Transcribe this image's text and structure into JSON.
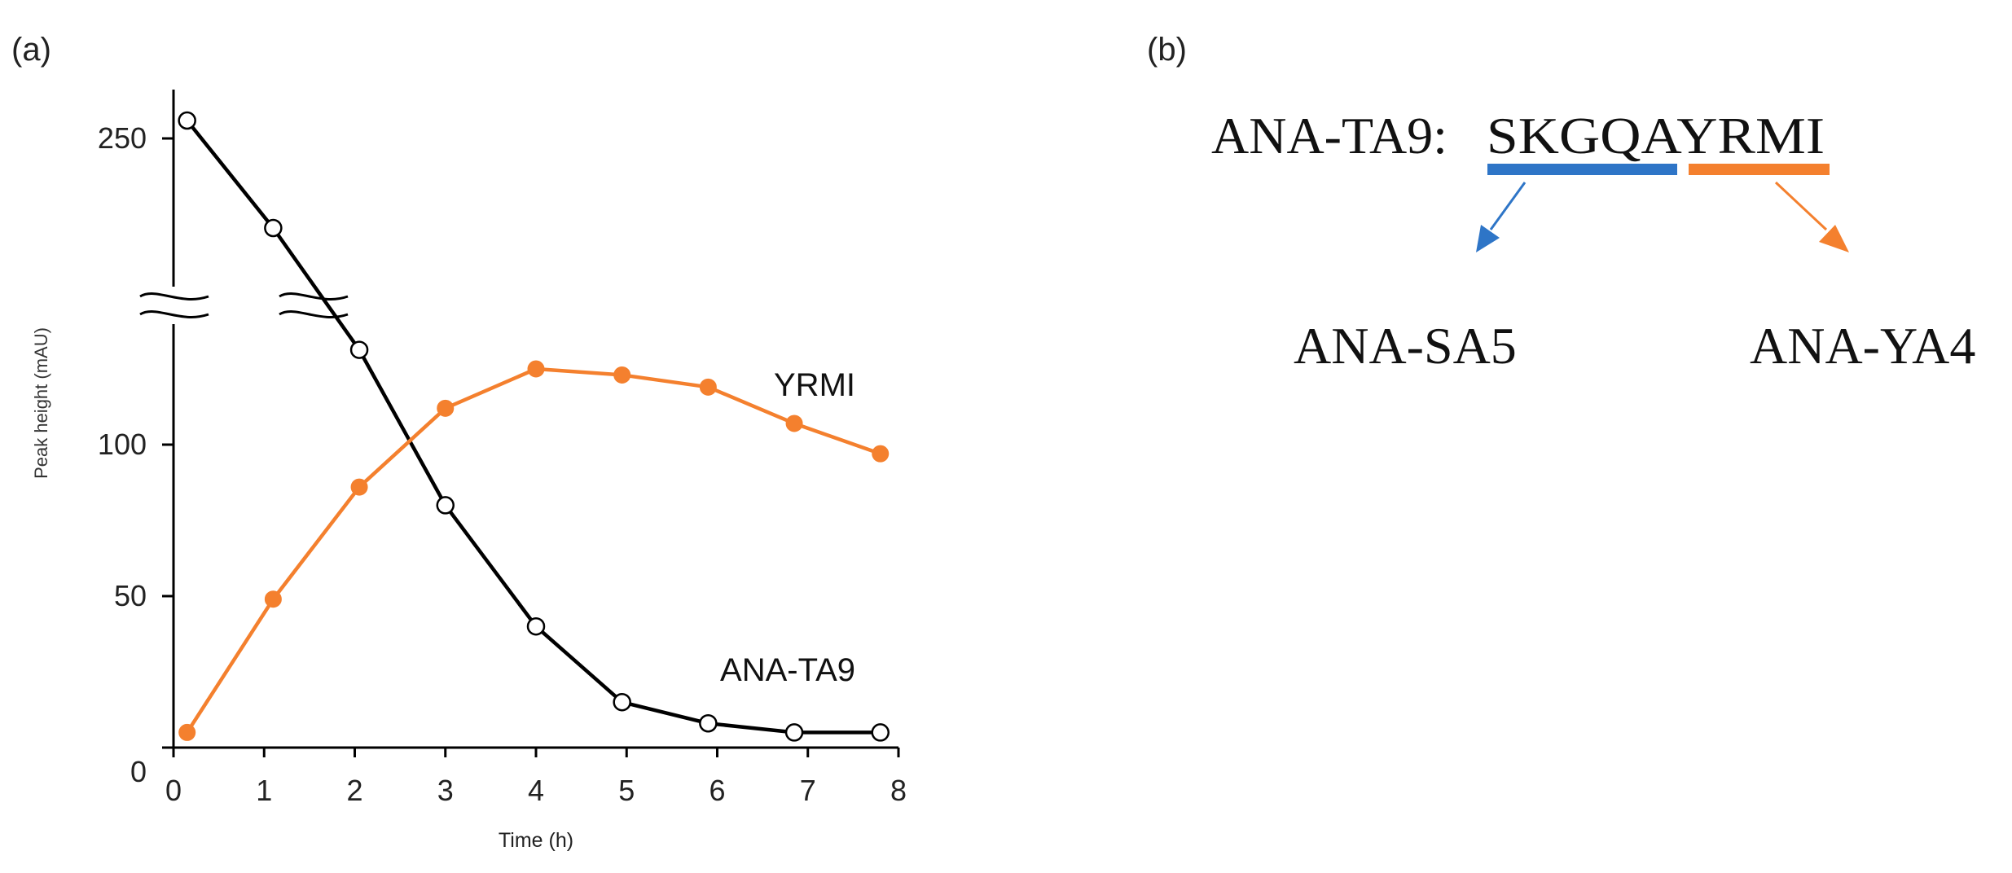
{
  "panels": {
    "a": {
      "label": "(a)"
    },
    "b": {
      "label": "(b)"
    }
  },
  "chart_data": {
    "type": "line",
    "xlabel": "Time (h)",
    "ylabel": "Peak height (mAU)",
    "xlim": [
      0,
      8
    ],
    "ylim": [
      0,
      260
    ],
    "axis_break": true,
    "x_ticks": [
      0,
      1,
      2,
      3,
      4,
      5,
      6,
      7,
      8
    ],
    "y_ticks": [
      0,
      50,
      100,
      250
    ],
    "grid": false,
    "legend": "none",
    "series": [
      {
        "name": "ANA-TA9",
        "color": "#000000",
        "marker": "open-circle",
        "x": [
          0.15,
          1.1,
          2.05,
          3.0,
          4.0,
          4.95,
          5.9,
          6.85,
          7.8
        ],
        "y": [
          260,
          200,
          132,
          80,
          40,
          15,
          8,
          5,
          5
        ]
      },
      {
        "name": "YRMI",
        "color": "#F4802E",
        "marker": "filled-circle",
        "x": [
          0.15,
          1.1,
          2.05,
          3.0,
          4.0,
          4.95,
          5.9,
          6.85,
          7.8
        ],
        "y": [
          5,
          49,
          86,
          112,
          125,
          123,
          119,
          107,
          97
        ]
      }
    ]
  },
  "sequence": {
    "prefix": "ANA-TA9:",
    "sequence": "SKGQAYRMI",
    "fragments": [
      {
        "label": "ANA-SA5",
        "color": "#2E75C7"
      },
      {
        "label": "ANA-YA4",
        "color": "#F4802E"
      }
    ]
  }
}
